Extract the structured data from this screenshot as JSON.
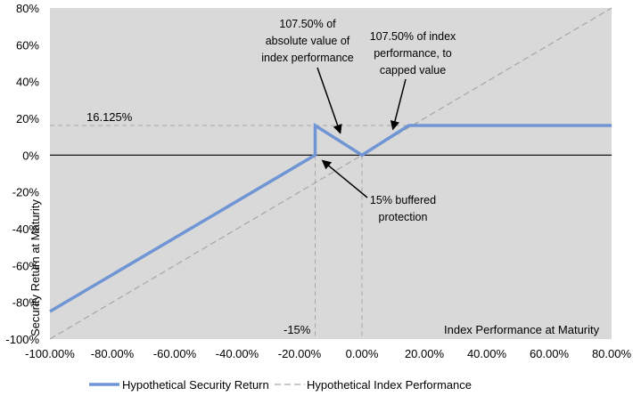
{
  "chart_data": {
    "type": "line",
    "title": "",
    "xlabel": "Index Performance at Maturity",
    "ylabel": "Security Return at Maturity",
    "xlim": [
      -100,
      80
    ],
    "ylim": [
      -100,
      80
    ],
    "x_ticks": [
      -100,
      -80,
      -60,
      -40,
      -20,
      0,
      20,
      40,
      60,
      80
    ],
    "x_tick_labels": [
      "-100.00%",
      "-80.00%",
      "-60.00%",
      "-40.00%",
      "-20.00%",
      "0.00%",
      "20.00%",
      "40.00%",
      "60.00%",
      "80.00%"
    ],
    "y_ticks": [
      80,
      60,
      40,
      20,
      0,
      -20,
      -40,
      -60,
      -80,
      -100
    ],
    "y_tick_labels": [
      "80%",
      "60%",
      "40%",
      "20%",
      "0%",
      "-20%",
      "-40%",
      "-60%",
      "-80%",
      "-100%"
    ],
    "grid": false,
    "background": "#d9d9d9",
    "legend_position": "bottom",
    "series": [
      {
        "name": "Hypothetical Security Return",
        "color": "#6f95d4",
        "style": "solid",
        "x": [
          -100,
          -15,
          -15,
          0,
          15,
          80
        ],
        "y": [
          -85,
          0,
          16.125,
          0,
          16.125,
          16.125
        ]
      },
      {
        "name": "Hypothetical Index Performance",
        "color": "#a6a6a6",
        "style": "dashed",
        "x": [
          -100,
          80
        ],
        "y": [
          -100,
          80
        ]
      }
    ],
    "reference_lines": [
      {
        "axis": "y",
        "value": 16.125,
        "label": "16.125%",
        "style": "dashed"
      },
      {
        "axis": "x",
        "value": -15,
        "label": "-15%",
        "style": "dashed"
      },
      {
        "axis": "x",
        "value": 0,
        "label": "",
        "style": "dashed"
      },
      {
        "axis": "y",
        "value": 0,
        "label": "",
        "style": "solid"
      }
    ],
    "annotations": [
      {
        "text": [
          "107.50% of",
          "absolute value of",
          "index performance"
        ],
        "points_to": [
          -7.5,
          8.06
        ]
      },
      {
        "text": [
          "107.50% of index",
          "performance, to",
          "capped value"
        ],
        "points_to": [
          10.75,
          11.56
        ]
      },
      {
        "text": [
          "15% buffered",
          "protection"
        ],
        "points_to": [
          -15,
          0
        ]
      }
    ]
  }
}
